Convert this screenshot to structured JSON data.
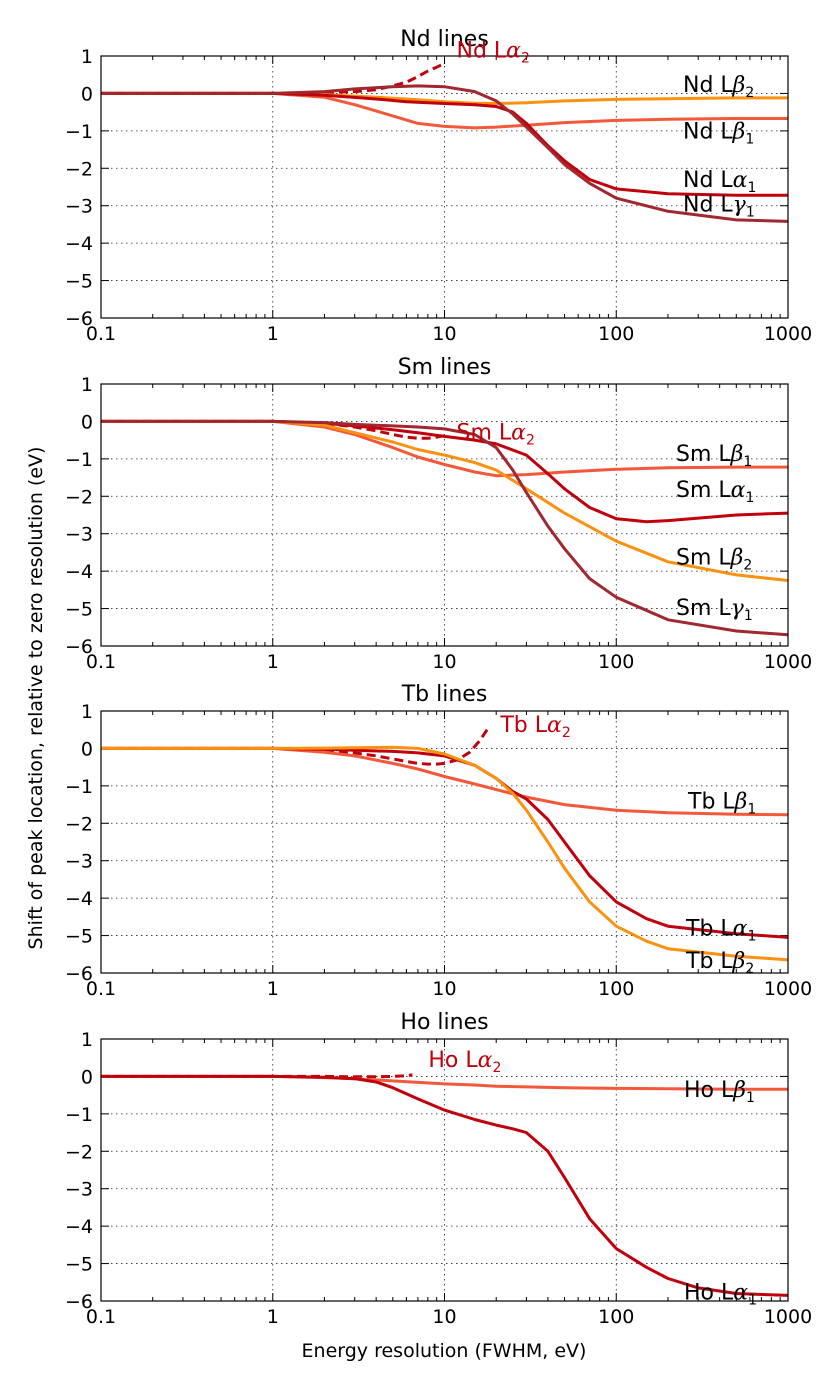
{
  "figure": {
    "ylabel": "Shift of peak location, relative to zero resolution (eV)",
    "xlabel": "Energy resolution (FWHM, eV)"
  },
  "colors": {
    "la1": "#c0000c",
    "la2": "#c0000c",
    "lb1": "#f4583a",
    "lb2": "#fb9110",
    "lg1": "#a0282e"
  },
  "chart_data": [
    {
      "type": "line",
      "title": "Nd lines",
      "xscale": "log",
      "xlim": [
        0.1,
        1000
      ],
      "ylim": [
        -6,
        1
      ],
      "xticks": [
        "0.1",
        "1",
        "10",
        "100",
        "1000"
      ],
      "yticks": [
        "1",
        "0",
        "−1",
        "−2",
        "−3",
        "−4",
        "−5",
        "−6"
      ],
      "grid": true,
      "series": [
        {
          "key": "la2",
          "name": "Nd Lα2",
          "base": "Nd L",
          "sym": "α",
          "sub": "2",
          "dashed": true,
          "x": [
            0.1,
            1,
            2,
            3,
            4,
            5,
            6,
            7,
            8,
            9,
            10
          ],
          "y": [
            0,
            0,
            0.02,
            0.05,
            0.1,
            0.2,
            0.3,
            0.45,
            0.6,
            0.7,
            0.8
          ]
        },
        {
          "key": "lb2",
          "name": "Nd Lβ2",
          "base": "Nd L",
          "sym": "β",
          "sub": "2",
          "x": [
            0.1,
            1,
            2,
            4,
            7,
            10,
            15,
            20,
            30,
            50,
            100,
            200,
            500,
            1000
          ],
          "y": [
            0,
            0,
            -0.03,
            -0.1,
            -0.17,
            -0.22,
            -0.26,
            -0.27,
            -0.25,
            -0.2,
            -0.16,
            -0.14,
            -0.12,
            -0.12
          ]
        },
        {
          "key": "lb1",
          "name": "Nd Lβ1",
          "base": "Nd L",
          "sym": "β",
          "sub": "1",
          "x": [
            0.1,
            1,
            2,
            3,
            5,
            7,
            10,
            15,
            20,
            30,
            50,
            100,
            200,
            500,
            1000
          ],
          "y": [
            0,
            0,
            -0.1,
            -0.3,
            -0.6,
            -0.8,
            -0.88,
            -0.92,
            -0.9,
            -0.85,
            -0.78,
            -0.72,
            -0.69,
            -0.67,
            -0.67
          ]
        },
        {
          "key": "la1",
          "name": "Nd Lα1",
          "base": "Nd L",
          "sym": "α",
          "sub": "1",
          "x": [
            0.1,
            1,
            2,
            4,
            6,
            10,
            15,
            20,
            25,
            30,
            40,
            50,
            70,
            100,
            200,
            500,
            1000
          ],
          "y": [
            0,
            0,
            -0.05,
            -0.15,
            -0.22,
            -0.27,
            -0.3,
            -0.35,
            -0.5,
            -0.8,
            -1.4,
            -1.8,
            -2.3,
            -2.55,
            -2.68,
            -2.72,
            -2.72
          ]
        },
        {
          "key": "lg1",
          "name": "Nd Lγ1",
          "base": "Nd L",
          "sym": "γ",
          "sub": "1",
          "x": [
            0.1,
            1,
            2,
            3,
            5,
            7,
            10,
            15,
            20,
            25,
            30,
            40,
            50,
            70,
            100,
            200,
            500,
            1000
          ],
          "y": [
            0,
            0,
            0.05,
            0.12,
            0.18,
            0.2,
            0.18,
            0.05,
            -0.2,
            -0.55,
            -0.9,
            -1.45,
            -1.9,
            -2.4,
            -2.8,
            -3.15,
            -3.38,
            -3.42
          ]
        }
      ],
      "annotations": [
        {
          "series": "la2",
          "text": "Nd Lα2",
          "colored": true
        },
        {
          "series": "lb2",
          "text": "Nd Lβ2"
        },
        {
          "series": "lb1",
          "text": "Nd Lβ1"
        },
        {
          "series": "la1",
          "text": "Nd Lα1"
        },
        {
          "series": "lg1",
          "text": "Nd Lγ1"
        }
      ]
    },
    {
      "type": "line",
      "title": "Sm lines",
      "xscale": "log",
      "xlim": [
        0.1,
        1000
      ],
      "ylim": [
        -6,
        1
      ],
      "xticks": [
        "0.1",
        "1",
        "10",
        "100",
        "1000"
      ],
      "yticks": [
        "1",
        "0",
        "−1",
        "−2",
        "−3",
        "−4",
        "−5",
        "−6"
      ],
      "grid": true,
      "series": [
        {
          "key": "la2",
          "name": "Sm Lα2",
          "base": "Sm L",
          "sym": "α",
          "sub": "2",
          "dashed": true,
          "x": [
            0.1,
            1,
            2,
            3,
            4,
            5,
            6,
            7,
            8,
            9,
            10
          ],
          "y": [
            0,
            0,
            -0.05,
            -0.15,
            -0.25,
            -0.35,
            -0.42,
            -0.45,
            -0.45,
            -0.42,
            -0.38
          ]
        },
        {
          "key": "lb1",
          "name": "Sm Lβ1",
          "base": "Sm L",
          "sym": "β",
          "sub": "1",
          "x": [
            0.1,
            1,
            2,
            3,
            5,
            7,
            10,
            15,
            20,
            30,
            50,
            100,
            200,
            500,
            1000
          ],
          "y": [
            0,
            0,
            -0.15,
            -0.35,
            -0.7,
            -0.95,
            -1.15,
            -1.35,
            -1.45,
            -1.42,
            -1.35,
            -1.28,
            -1.24,
            -1.22,
            -1.22
          ]
        },
        {
          "key": "la1",
          "name": "Sm Lα1",
          "base": "Sm L",
          "sym": "α",
          "sub": "1",
          "x": [
            0.1,
            1,
            2,
            3,
            5,
            7,
            10,
            15,
            20,
            30,
            40,
            50,
            70,
            100,
            150,
            200,
            500,
            1000
          ],
          "y": [
            0,
            0,
            -0.05,
            -0.12,
            -0.22,
            -0.3,
            -0.4,
            -0.5,
            -0.6,
            -0.9,
            -1.4,
            -1.8,
            -2.3,
            -2.6,
            -2.68,
            -2.65,
            -2.5,
            -2.45
          ]
        },
        {
          "key": "lb2",
          "name": "Sm Lβ2",
          "base": "Sm L",
          "sym": "β",
          "sub": "2",
          "x": [
            0.1,
            1,
            2,
            3,
            5,
            7,
            10,
            15,
            20,
            30,
            50,
            100,
            200,
            500,
            1000
          ],
          "y": [
            0,
            0,
            -0.1,
            -0.3,
            -0.55,
            -0.75,
            -0.9,
            -1.1,
            -1.3,
            -1.8,
            -2.45,
            -3.2,
            -3.75,
            -4.1,
            -4.25
          ]
        },
        {
          "key": "lg1",
          "name": "Sm Lγ1",
          "base": "Sm L",
          "sym": "γ",
          "sub": "1",
          "x": [
            0.1,
            1,
            2,
            3,
            5,
            7,
            10,
            15,
            20,
            25,
            30,
            40,
            50,
            70,
            100,
            200,
            500,
            1000
          ],
          "y": [
            0,
            0,
            -0.03,
            -0.08,
            -0.12,
            -0.15,
            -0.2,
            -0.35,
            -0.7,
            -1.3,
            -1.9,
            -2.8,
            -3.4,
            -4.2,
            -4.7,
            -5.3,
            -5.6,
            -5.7
          ]
        }
      ],
      "annotations": [
        {
          "series": "la2",
          "text": "Sm Lα2",
          "colored": true
        },
        {
          "series": "lb1",
          "text": "Sm Lβ1"
        },
        {
          "series": "la1",
          "text": "Sm Lα1"
        },
        {
          "series": "lb2",
          "text": "Sm Lβ2"
        },
        {
          "series": "lg1",
          "text": "Sm Lγ1"
        }
      ]
    },
    {
      "type": "line",
      "title": "Tb lines",
      "xscale": "log",
      "xlim": [
        0.1,
        1000
      ],
      "ylim": [
        -6,
        1
      ],
      "xticks": [
        "0.1",
        "1",
        "10",
        "100",
        "1000"
      ],
      "yticks": [
        "1",
        "0",
        "−1",
        "−2",
        "−3",
        "−4",
        "−5",
        "−6"
      ],
      "grid": true,
      "series": [
        {
          "key": "la2",
          "name": "Tb Lα2",
          "base": "Tb L",
          "sym": "α",
          "sub": "2",
          "dashed": true,
          "x": [
            0.1,
            1,
            2,
            3,
            4,
            5,
            6,
            7,
            8,
            9,
            10,
            12,
            14,
            16,
            18
          ],
          "y": [
            0,
            0,
            -0.05,
            -0.12,
            -0.2,
            -0.28,
            -0.35,
            -0.4,
            -0.42,
            -0.42,
            -0.4,
            -0.3,
            -0.1,
            0.2,
            0.55
          ]
        },
        {
          "key": "lb1",
          "name": "Tb Lβ1",
          "base": "Tb L",
          "sym": "β",
          "sub": "1",
          "x": [
            0.1,
            1,
            2,
            3,
            5,
            7,
            10,
            15,
            20,
            30,
            50,
            100,
            200,
            500,
            1000
          ],
          "y": [
            0,
            0,
            -0.1,
            -0.2,
            -0.4,
            -0.55,
            -0.75,
            -0.95,
            -1.1,
            -1.3,
            -1.5,
            -1.65,
            -1.72,
            -1.76,
            -1.77
          ]
        },
        {
          "key": "la1",
          "name": "Tb Lα1",
          "base": "Tb L",
          "sym": "α",
          "sub": "1",
          "x": [
            0.1,
            1,
            2,
            3,
            5,
            7,
            10,
            15,
            20,
            25,
            30,
            40,
            50,
            70,
            100,
            150,
            200,
            500,
            1000
          ],
          "y": [
            0,
            0,
            -0.02,
            -0.05,
            -0.08,
            -0.12,
            -0.2,
            -0.45,
            -0.8,
            -1.15,
            -1.35,
            -1.9,
            -2.5,
            -3.4,
            -4.1,
            -4.55,
            -4.75,
            -4.95,
            -5.05
          ]
        },
        {
          "key": "lb2",
          "name": "Tb Lβ2",
          "base": "Tb L",
          "sym": "β",
          "sub": "2",
          "x": [
            0.1,
            1,
            2,
            3,
            5,
            7,
            10,
            15,
            20,
            25,
            30,
            40,
            50,
            70,
            100,
            150,
            200,
            500,
            1000
          ],
          "y": [
            0,
            0,
            0.01,
            0.02,
            0.03,
            0.0,
            -0.15,
            -0.45,
            -0.8,
            -1.2,
            -1.65,
            -2.5,
            -3.2,
            -4.1,
            -4.75,
            -5.15,
            -5.35,
            -5.55,
            -5.65
          ]
        }
      ],
      "annotations": [
        {
          "series": "la2",
          "text": "Tb Lα2",
          "colored": true
        },
        {
          "series": "lb1",
          "text": "Tb Lβ1"
        },
        {
          "series": "la1",
          "text": "Tb Lα1"
        },
        {
          "series": "lb2",
          "text": "Tb Lβ2"
        }
      ]
    },
    {
      "type": "line",
      "title": "Ho lines",
      "xscale": "log",
      "xlim": [
        0.1,
        1000
      ],
      "ylim": [
        -6,
        1
      ],
      "xticks": [
        "0.1",
        "1",
        "10",
        "100",
        "1000"
      ],
      "yticks": [
        "1",
        "0",
        "−1",
        "−2",
        "−3",
        "−4",
        "−5",
        "−6"
      ],
      "grid": true,
      "series": [
        {
          "key": "la2",
          "name": "Ho Lα2",
          "base": "Ho L",
          "sym": "α",
          "sub": "2",
          "dashed": true,
          "x": [
            0.1,
            1,
            2,
            3,
            4,
            5,
            6,
            6.5
          ],
          "y": [
            0,
            0,
            0.0,
            -0.01,
            -0.01,
            0.0,
            0.02,
            0.04
          ]
        },
        {
          "key": "lb1",
          "name": "Ho Lβ1",
          "base": "Ho L",
          "sym": "β",
          "sub": "1",
          "x": [
            0.1,
            1,
            2,
            3,
            5,
            7,
            10,
            15,
            20,
            30,
            50,
            100,
            200,
            500,
            1000
          ],
          "y": [
            0,
            0,
            -0.03,
            -0.06,
            -0.12,
            -0.16,
            -0.2,
            -0.23,
            -0.26,
            -0.28,
            -0.3,
            -0.32,
            -0.33,
            -0.34,
            -0.34
          ]
        },
        {
          "key": "la1",
          "name": "Ho Lα1",
          "base": "Ho L",
          "sym": "α",
          "sub": "1",
          "x": [
            0.1,
            1,
            2,
            3,
            4,
            5,
            7,
            10,
            15,
            20,
            25,
            30,
            40,
            50,
            70,
            100,
            150,
            200,
            300,
            500,
            1000
          ],
          "y": [
            0,
            0,
            -0.02,
            -0.06,
            -0.15,
            -0.3,
            -0.6,
            -0.9,
            -1.15,
            -1.3,
            -1.4,
            -1.5,
            -2.0,
            -2.7,
            -3.8,
            -4.6,
            -5.1,
            -5.4,
            -5.65,
            -5.8,
            -5.85
          ]
        }
      ],
      "annotations": [
        {
          "series": "la2",
          "text": "Ho Lα2",
          "colored": true
        },
        {
          "series": "lb1",
          "text": "Ho Lβ1"
        },
        {
          "series": "la1",
          "text": "Ho Lα1"
        }
      ]
    }
  ]
}
